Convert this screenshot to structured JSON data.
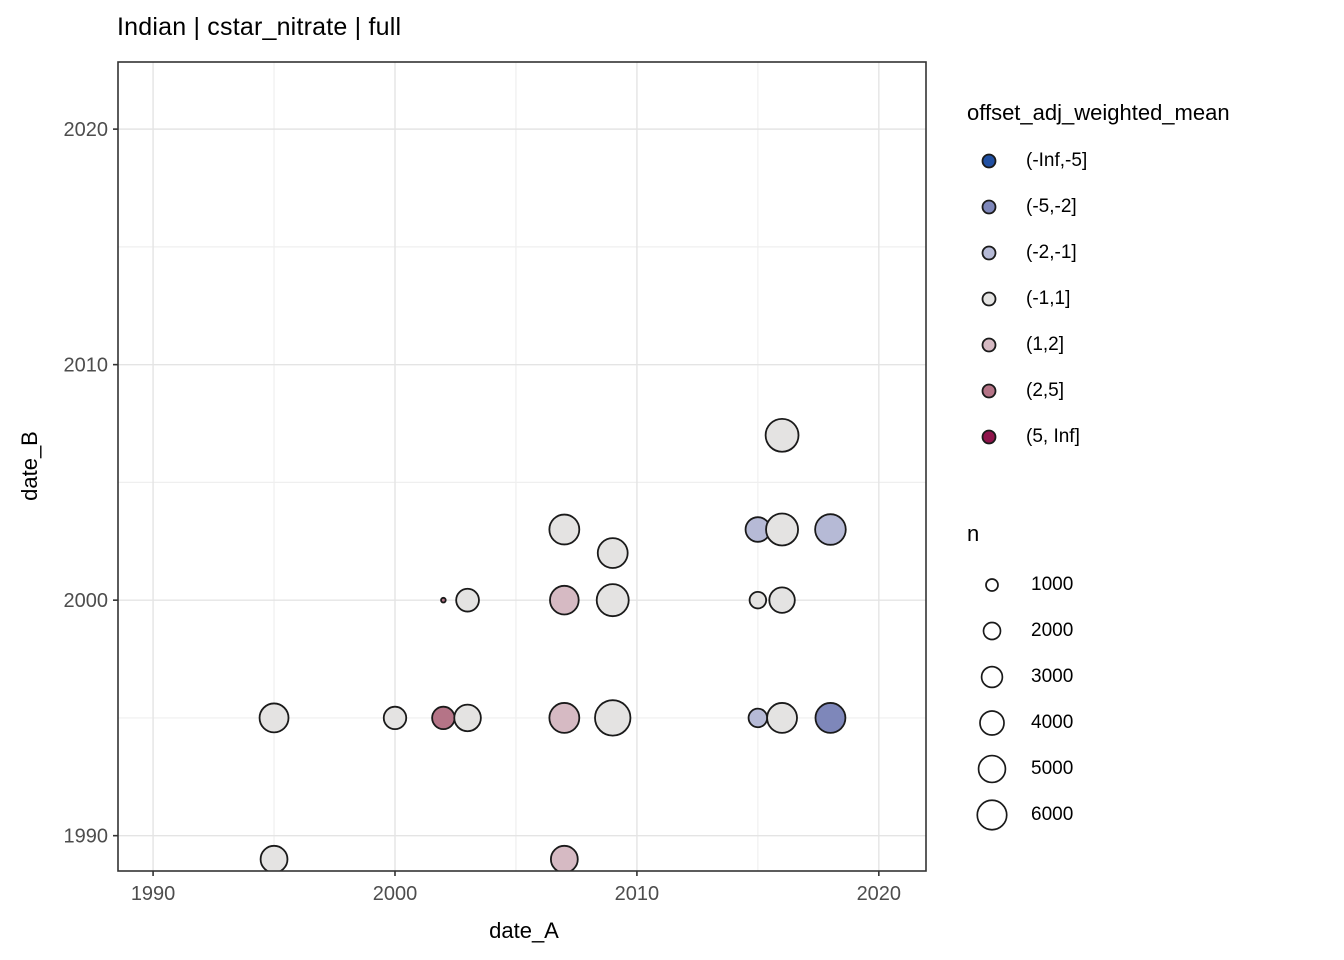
{
  "chart_data": {
    "type": "scatter",
    "title": "Indian | cstar_nitrate | full",
    "xlabel": "date_A",
    "ylabel": "date_B",
    "x_ticks": [
      1990,
      2000,
      2010,
      2020
    ],
    "y_ticks": [
      1990,
      2000,
      2010,
      2020
    ],
    "x_minor_gridlines": [
      1995,
      2005,
      2015
    ],
    "y_minor_gridlines": [
      1995,
      2005,
      2015
    ],
    "xlim": [
      1988.55,
      2021.95
    ],
    "ylim": [
      1988.5,
      2022.85
    ],
    "grid": true,
    "legend_position": "right",
    "color_legend": {
      "title": "offset_adj_weighted_mean",
      "entries": [
        {
          "label": "(-Inf,-5]",
          "color": "#2150a2"
        },
        {
          "label": "(-5,-2]",
          "color": "#7e87ba"
        },
        {
          "label": "(-2,-1]",
          "color": "#b6bad6"
        },
        {
          "label": "(-1,1]",
          "color": "#e4e3e2"
        },
        {
          "label": "(1,2]",
          "color": "#d6bac3"
        },
        {
          "label": "(2,5]",
          "color": "#b57487"
        },
        {
          "label": "(5, Inf]",
          "color": "#8f144b"
        }
      ]
    },
    "size_legend": {
      "title": "n",
      "entries": [
        1000,
        2000,
        3000,
        4000,
        5000,
        6000
      ]
    },
    "points": [
      {
        "date_A": 1995,
        "date_B": 1995,
        "offset_bin": "(-1,1]",
        "n": 5800
      },
      {
        "date_A": 1995,
        "date_B": 1989,
        "offset_bin": "(-1,1]",
        "n": 5000
      },
      {
        "date_A": 2000,
        "date_B": 1995,
        "offset_bin": "(-1,1]",
        "n": 3500
      },
      {
        "date_A": 2002,
        "date_B": 1995,
        "offset_bin": "(2,5]",
        "n": 3500
      },
      {
        "date_A": 2002,
        "date_B": 2000,
        "offset_bin": "(2,5]",
        "n": 150
      },
      {
        "date_A": 2003,
        "date_B": 1995,
        "offset_bin": "(-1,1]",
        "n": 4900
      },
      {
        "date_A": 2003,
        "date_B": 2000,
        "offset_bin": "(-1,1]",
        "n": 3600
      },
      {
        "date_A": 2007,
        "date_B": 2003,
        "offset_bin": "(-1,1]",
        "n": 6200
      },
      {
        "date_A": 2007,
        "date_B": 2000,
        "offset_bin": "(1,2]",
        "n": 5700
      },
      {
        "date_A": 2007,
        "date_B": 1995,
        "offset_bin": "(1,2]",
        "n": 6200
      },
      {
        "date_A": 2007,
        "date_B": 1989,
        "offset_bin": "(1,2]",
        "n": 5000
      },
      {
        "date_A": 2009,
        "date_B": 2002,
        "offset_bin": "(-1,1]",
        "n": 6200
      },
      {
        "date_A": 2009,
        "date_B": 2000,
        "offset_bin": "(-1,1]",
        "n": 7100
      },
      {
        "date_A": 2009,
        "date_B": 1995,
        "offset_bin": "(-1,1]",
        "n": 8700
      },
      {
        "date_A": 2015,
        "date_B": 2003,
        "offset_bin": "(-2,-1]",
        "n": 4200
      },
      {
        "date_A": 2015,
        "date_B": 2000,
        "offset_bin": "(-1,1]",
        "n": 1900
      },
      {
        "date_A": 2015,
        "date_B": 1995,
        "offset_bin": "(-2,-1]",
        "n": 2400
      },
      {
        "date_A": 2016,
        "date_B": 2007,
        "offset_bin": "(-1,1]",
        "n": 7500
      },
      {
        "date_A": 2016,
        "date_B": 2003,
        "offset_bin": "(-1,1]",
        "n": 7100
      },
      {
        "date_A": 2016,
        "date_B": 2000,
        "offset_bin": "(-1,1]",
        "n": 4500
      },
      {
        "date_A": 2016,
        "date_B": 1995,
        "offset_bin": "(-1,1]",
        "n": 6200
      },
      {
        "date_A": 2018,
        "date_B": 2003,
        "offset_bin": "(-2,-1]",
        "n": 6500
      },
      {
        "date_A": 2018,
        "date_B": 1995,
        "offset_bin": "(-5,-2]",
        "n": 6200
      }
    ]
  },
  "colors": {
    "point_stroke": "#1a1a1a",
    "panel_border": "#333333",
    "panel_background": "#ffffff",
    "grid_major": "#e4e4e4",
    "grid_minor": "#efefef",
    "tick_mark": "#333333",
    "tick_label": "#4d4d4d",
    "size_legend_fill": "#ffffff"
  }
}
